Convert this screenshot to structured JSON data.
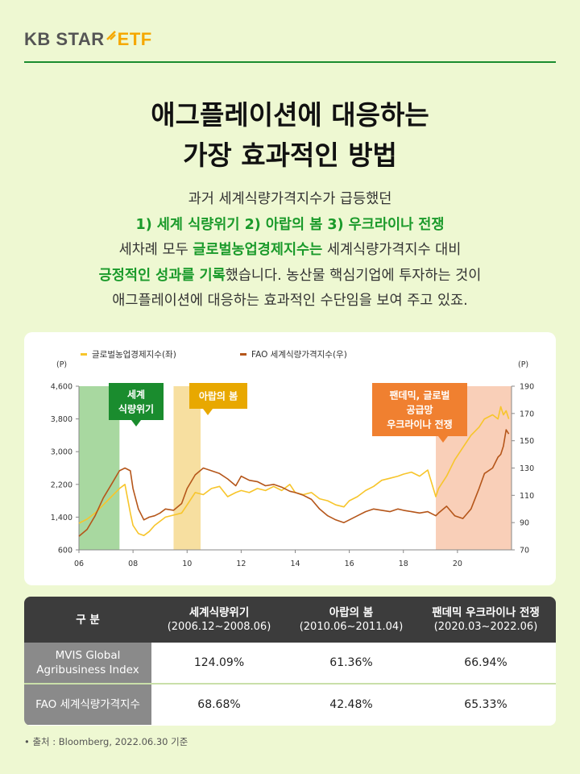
{
  "brand": {
    "kb": "KB STAR",
    "etf": "ETF",
    "mark_color": "#f5a800"
  },
  "title": {
    "line1": "애그플레이션에 대응하는",
    "line2": "가장 효과적인 방법"
  },
  "desc": {
    "l1": "과거 세계식량가격지수가 급등했던",
    "l2": "1) 세계 식량위기 2) 아랍의 봄 3) 우크라이나 전쟁",
    "l3a": "세차례 모두 ",
    "l3b": "글로벌농업경제지수는",
    "l3c": " 세계식량가격지수 대비",
    "l4a": "긍정적인 성과를 기록",
    "l4b": "했습니다. 농산물 핵심기업에 투자하는 것이",
    "l5": "애그플레이션에 대응하는 효과적인 수단임을 보여 주고 있죠."
  },
  "colors": {
    "green": "#1a9a2a",
    "line_left": "#f7c52b",
    "line_right": "#b5561a"
  },
  "chart_data": {
    "type": "line",
    "legend": [
      "글로벌농업경제지수(좌)",
      "FAO 세계식량가격지수(우)"
    ],
    "legend_placement": "top-left",
    "ylabel_left": "(P)",
    "ylabel_right": "(P)",
    "ylim_left": [
      600,
      4600
    ],
    "ylim_right": [
      70,
      190
    ],
    "xlim": [
      2006,
      2022
    ],
    "yticks_left": [
      "4,600",
      "3,800",
      "3,000",
      "2,200",
      "1,400",
      "600"
    ],
    "yticks_right": [
      "190",
      "170",
      "150",
      "130",
      "110",
      "90",
      "70"
    ],
    "xticks": [
      "06",
      "08",
      "10",
      "12",
      "14",
      "16",
      "18",
      "20"
    ],
    "series": [
      {
        "name": "글로벌농업경제지수(좌)",
        "x": [
          2006.0,
          2006.3,
          2006.6,
          2006.9,
          2007.2,
          2007.5,
          2007.7,
          2007.9,
          2008.0,
          2008.2,
          2008.4,
          2008.6,
          2008.8,
          2009.0,
          2009.2,
          2009.5,
          2009.8,
          2010.0,
          2010.3,
          2010.6,
          2010.9,
          2011.2,
          2011.5,
          2011.8,
          2012.0,
          2012.3,
          2012.6,
          2012.9,
          2013.2,
          2013.5,
          2013.8,
          2014.0,
          2014.3,
          2014.6,
          2014.9,
          2015.2,
          2015.5,
          2015.8,
          2016.0,
          2016.3,
          2016.6,
          2016.9,
          2017.2,
          2017.5,
          2017.8,
          2018.0,
          2018.3,
          2018.6,
          2018.9,
          2019.2,
          2019.3,
          2019.6,
          2019.9,
          2020.2,
          2020.5,
          2020.8,
          2021.0,
          2021.3,
          2021.5,
          2021.6,
          2021.7,
          2021.8,
          2021.9
        ],
        "y": [
          1250,
          1350,
          1500,
          1700,
          1900,
          2100,
          2200,
          1500,
          1200,
          1000,
          950,
          1050,
          1200,
          1300,
          1400,
          1450,
          1500,
          1700,
          2000,
          1950,
          2100,
          2150,
          1900,
          2000,
          2050,
          2000,
          2100,
          2050,
          2150,
          2050,
          2200,
          2000,
          1950,
          2000,
          1850,
          1800,
          1700,
          1650,
          1800,
          1900,
          2050,
          2150,
          2300,
          2350,
          2400,
          2450,
          2500,
          2400,
          2550,
          1900,
          2100,
          2400,
          2800,
          3100,
          3400,
          3600,
          3800,
          3900,
          3800,
          4100,
          3900,
          4000,
          3800
        ]
      },
      {
        "name": "FAO 세계식량가격지수(우)",
        "x": [
          2006.0,
          2006.3,
          2006.6,
          2006.9,
          2007.2,
          2007.5,
          2007.7,
          2007.9,
          2008.0,
          2008.2,
          2008.4,
          2008.6,
          2008.8,
          2009.0,
          2009.2,
          2009.5,
          2009.8,
          2010.0,
          2010.3,
          2010.6,
          2010.9,
          2011.2,
          2011.5,
          2011.8,
          2012.0,
          2012.3,
          2012.6,
          2012.9,
          2013.2,
          2013.5,
          2013.8,
          2014.0,
          2014.3,
          2014.6,
          2014.9,
          2015.2,
          2015.5,
          2015.8,
          2016.0,
          2016.3,
          2016.6,
          2016.9,
          2017.2,
          2017.5,
          2017.8,
          2018.0,
          2018.3,
          2018.6,
          2018.9,
          2019.2,
          2019.3,
          2019.6,
          2019.9,
          2020.2,
          2020.5,
          2020.8,
          2021.0,
          2021.3,
          2021.5,
          2021.6,
          2021.7,
          2021.8,
          2021.9
        ],
        "y": [
          80,
          85,
          95,
          108,
          118,
          128,
          130,
          128,
          115,
          100,
          92,
          94,
          95,
          97,
          100,
          99,
          104,
          115,
          125,
          130,
          128,
          126,
          122,
          117,
          124,
          121,
          120,
          117,
          118,
          116,
          113,
          112,
          110,
          107,
          100,
          95,
          92,
          90,
          92,
          95,
          98,
          100,
          99,
          98,
          100,
          99,
          98,
          97,
          98,
          95,
          97,
          102,
          95,
          93,
          100,
          115,
          126,
          130,
          138,
          140,
          146,
          158,
          155
        ]
      }
    ],
    "regions": [
      {
        "label_lines": [
          "세계",
          "식량위기"
        ],
        "x0": 2006.0,
        "x1": 2007.5,
        "color": "#a8d8a0",
        "label_color": "#1a8c2e"
      },
      {
        "label_lines": [
          "아랍의 봄"
        ],
        "x0": 2009.5,
        "x1": 2010.5,
        "color": "#f7dfa0",
        "label_color": "#e8a800"
      },
      {
        "label_lines": [
          "팬데믹, 글로벌",
          "공급망",
          "우크라이나 전쟁"
        ],
        "x0": 2019.2,
        "x1": 2022.0,
        "color": "#f9cfb8",
        "label_color": "#f08030"
      }
    ]
  },
  "table": {
    "headers": [
      {
        "label": "구 분",
        "sub": ""
      },
      {
        "label": "세계식량위기",
        "sub": "(2006.12~2008.06)"
      },
      {
        "label": "아랍의 봄",
        "sub": "(2010.06~2011.04)"
      },
      {
        "label": "팬데믹 우크라이나 전쟁",
        "sub": "(2020.03~2022.06)"
      }
    ],
    "rows": [
      {
        "name_l1": "MVIS Global",
        "name_l2": "Agribusiness Index",
        "values": [
          "124.09%",
          "61.36%",
          "66.94%"
        ]
      },
      {
        "name_l1": "FAO 세계식량가격지수",
        "name_l2": "",
        "values": [
          "68.68%",
          "42.48%",
          "65.33%"
        ]
      }
    ]
  },
  "source": "• 출처 : Bloomberg, 2022.06.30 기준"
}
